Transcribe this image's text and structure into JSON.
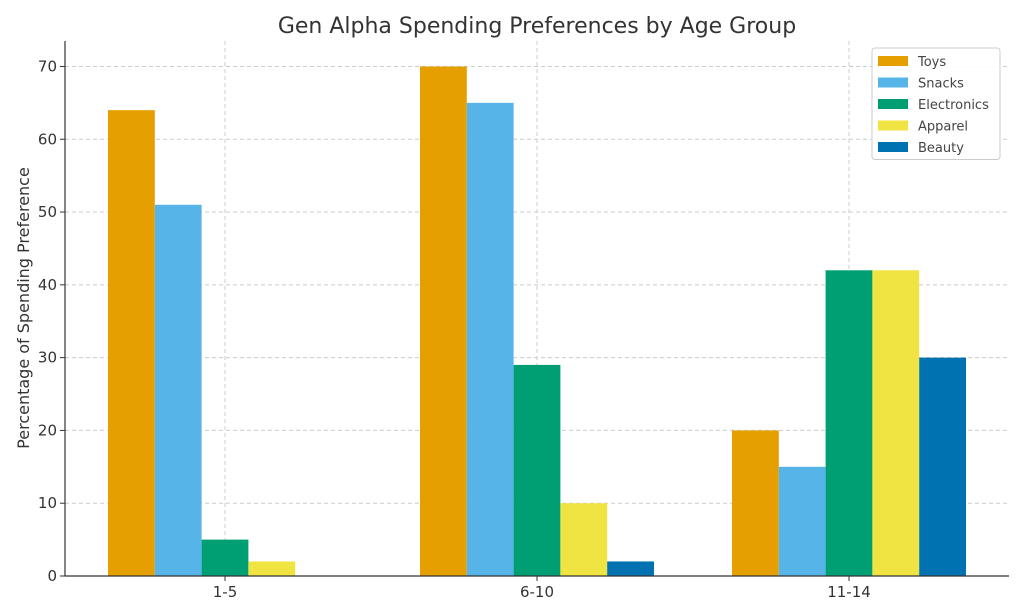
{
  "chart_data": {
    "type": "bar",
    "title": "Gen Alpha Spending Preferences by Age Group",
    "xlabel": "",
    "ylabel": "Percentage of Spending Preference",
    "categories": [
      "1-5",
      "6-10",
      "11-14"
    ],
    "series": [
      {
        "name": "Toys",
        "color": "#E69F00",
        "values": [
          64,
          70,
          20
        ]
      },
      {
        "name": "Snacks",
        "color": "#56B4E9",
        "values": [
          51,
          65,
          15
        ]
      },
      {
        "name": "Electronics",
        "color": "#009E73",
        "values": [
          5,
          29,
          42
        ]
      },
      {
        "name": "Apparel",
        "color": "#F0E442",
        "values": [
          2,
          10,
          42
        ]
      },
      {
        "name": "Beauty",
        "color": "#0072B2",
        "values": [
          0,
          2,
          30
        ]
      }
    ],
    "ylim": [
      0,
      73.5
    ],
    "yticks": [
      0,
      10,
      20,
      30,
      40,
      50,
      60,
      70
    ],
    "grid": true,
    "legend": "top-right"
  }
}
